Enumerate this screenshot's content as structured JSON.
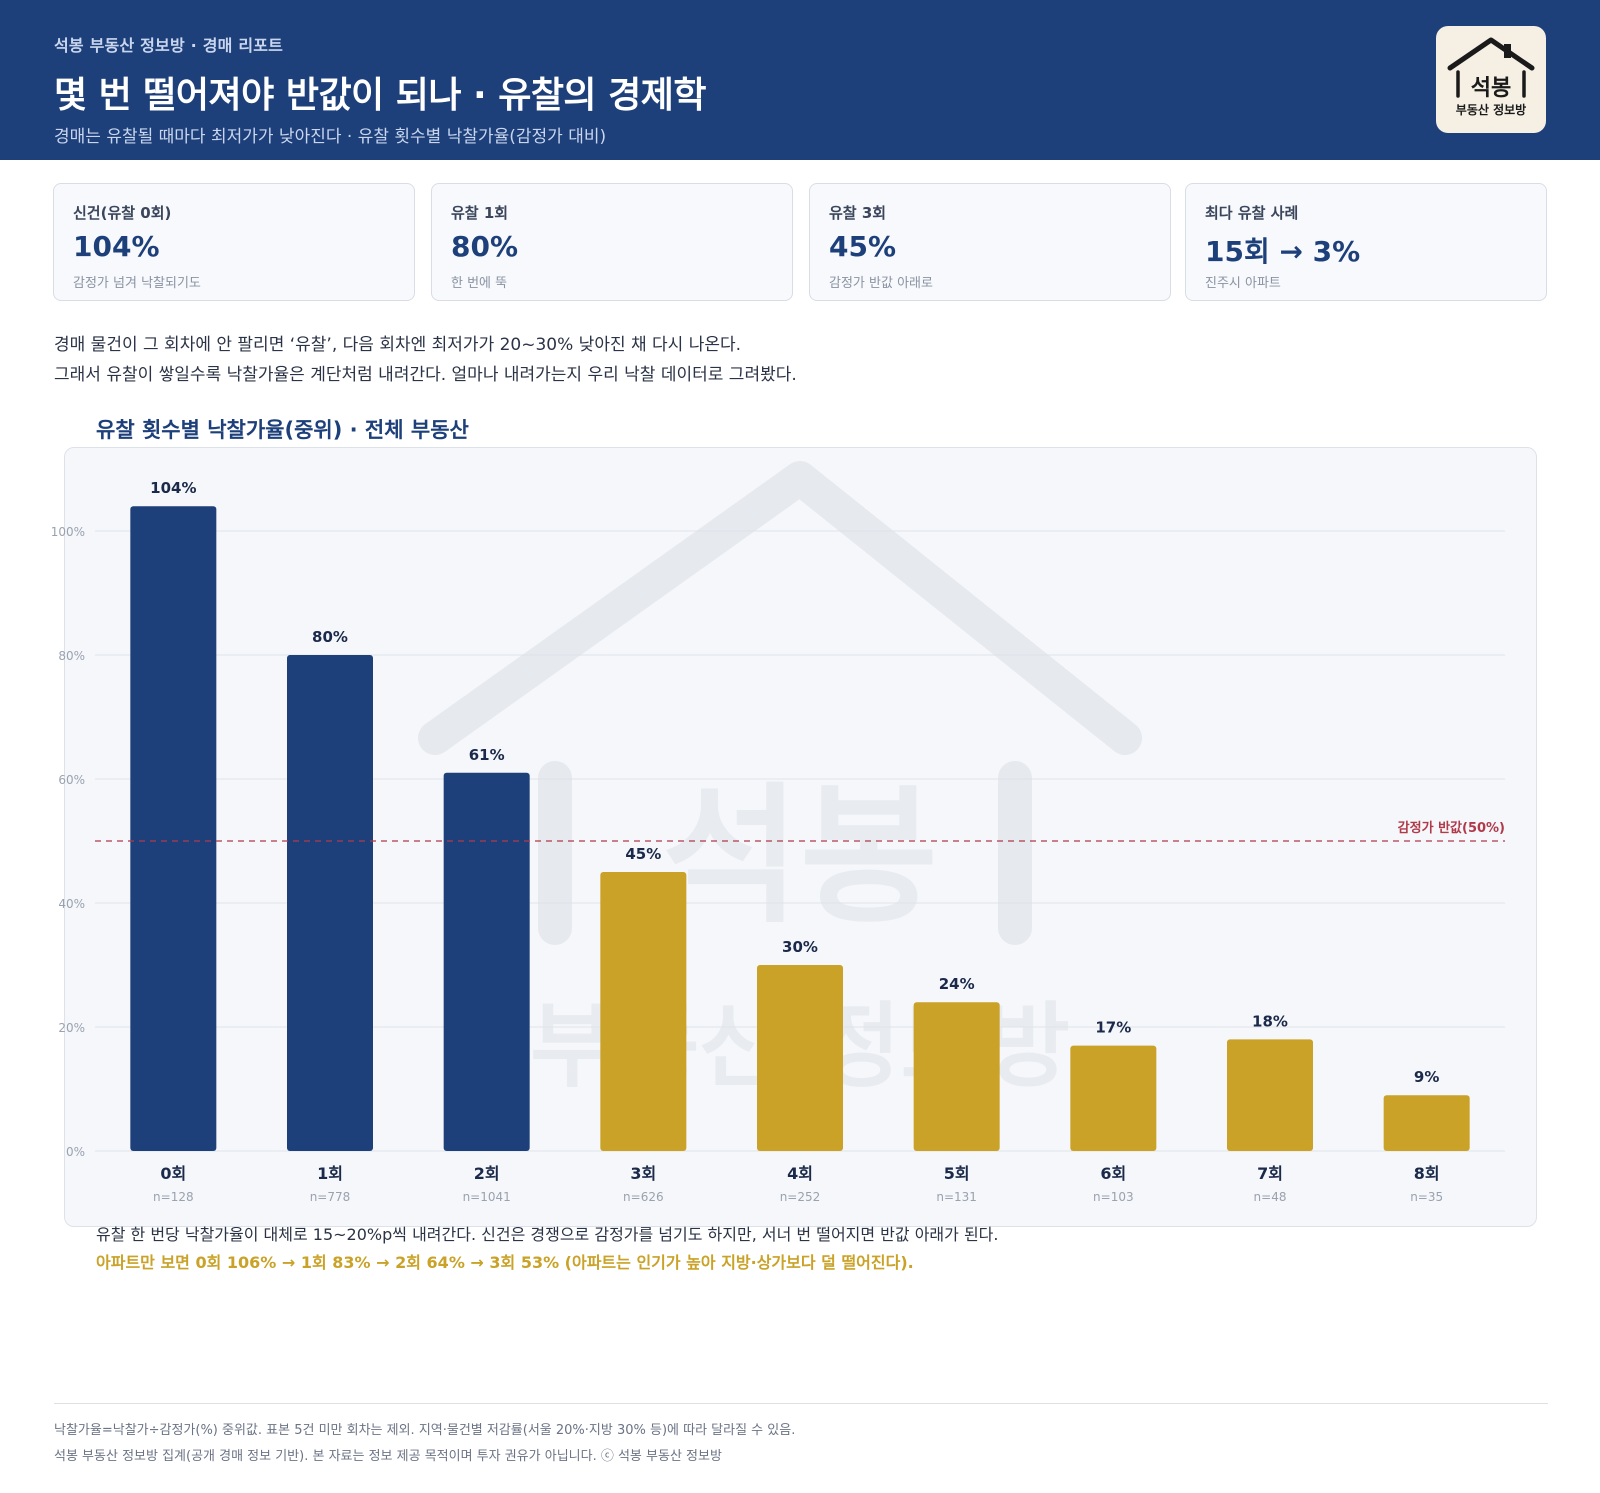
{
  "header": {
    "eyebrow": "석봉 부동산 정보방 · 경매 리포트",
    "title": "몇 번 떨어져야 반값이 되나 · 유찰의 경제학",
    "subtitle": "경매는 유찰될 때마다 최저가가 낮아진다 · 유찰 횟수별 낙찰가율(감정가 대비)",
    "logo_main": "석봉",
    "logo_sub": "부동산 정보방"
  },
  "kpis": [
    {
      "label": "신건(유찰 0회)",
      "value": "104%",
      "note": "감정가 넘겨 낙찰되기도"
    },
    {
      "label": "유찰 1회",
      "value": "80%",
      "note": "한 번에 뚝"
    },
    {
      "label": "유찰 3회",
      "value": "45%",
      "note": "감정가 반값 아래로"
    },
    {
      "label": "최다 유찰 사례",
      "value": "15회 → 3%",
      "note": "진주시 아파트"
    }
  ],
  "intro": {
    "line1": "경매 물건이 그 회차에 안 팔리면 ‘유찰’, 다음 회차엔 최저가가 20~30% 낮아진 채 다시 나온다.",
    "line2": "그래서 유찰이 쌓일수록 낙찰가율은 계단처럼 내려간다. 얼마나 내려가는지 우리 낙찰 데이터로 그려봤다."
  },
  "chart_title": "유찰 횟수별 낙찰가율(중위) · 전체 부동산",
  "chart_data": {
    "type": "bar",
    "categories": [
      "0회",
      "1회",
      "2회",
      "3회",
      "4회",
      "5회",
      "6회",
      "7회",
      "8회"
    ],
    "values": [
      104,
      80,
      61,
      45,
      30,
      24,
      17,
      18,
      9
    ],
    "value_labels": [
      "104%",
      "80%",
      "61%",
      "45%",
      "30%",
      "24%",
      "17%",
      "18%",
      "9%"
    ],
    "sample_sizes": [
      "n=128",
      "n=778",
      "n=1041",
      "n=626",
      "n=252",
      "n=131",
      "n=103",
      "n=48",
      "n=35"
    ],
    "y_ticks": [
      0,
      20,
      40,
      60,
      80,
      100
    ],
    "y_tick_labels": [
      "0%",
      "20%",
      "40%",
      "60%",
      "80%",
      "100%"
    ],
    "ylim": [
      0,
      110
    ],
    "grid": true,
    "reference_line": {
      "value": 50,
      "label": "감정가 반값(50%)",
      "color": "#b03a4a"
    },
    "colors": {
      "above_half": "#1d3f7a",
      "below_half": "#c9a227"
    },
    "watermark_main": "석봉",
    "watermark_sub": "부동산 정보방"
  },
  "captions": {
    "line1": "유찰 한 번당 낙찰가율이 대체로 15~20%p씩 내려간다. 신건은 경쟁으로 감정가를 넘기도 하지만, 서너 번 떨어지면 반값 아래가 된다.",
    "line2": "아파트만 보면 0회 106% → 1회 83% → 2회 64% → 3회 53% (아파트는 인기가 높아 지방·상가보다 덜 떨어진다)."
  },
  "footer": {
    "line1": "낙찰가율=낙찰가÷감정가(%) 중위값. 표본 5건 미만 회차는 제외. 지역·물건별 저감률(서울 20%·지방 30% 등)에 따라 달라질 수 있음.",
    "line2": "석봉 부동산 정보방 집계(공개 경매 정보 기반). 본 자료는 정보 제공 목적이며 투자 권유가 아닙니다. ⓒ 석봉 부동산 정보방"
  }
}
